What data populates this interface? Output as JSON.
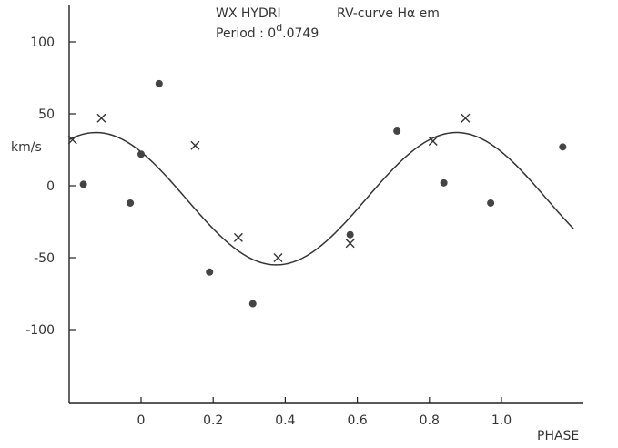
{
  "chart_data": {
    "type": "scatter",
    "title_object": "WX HYDRI",
    "title_curve": "RV-curve Hα em",
    "period_prefix": "Period : 0",
    "period_sup": "d",
    "period_suffix": ".0749",
    "ylabel": "km/s",
    "xlabel": "PHASE",
    "xlim": [
      -0.2,
      1.22
    ],
    "ylim": [
      -150,
      125
    ],
    "x_ticks": [
      0,
      0.2,
      0.4,
      0.6,
      0.8,
      1.0
    ],
    "x_tick_labels": [
      "0",
      "0.2",
      "0.4",
      "0.6",
      "0.8",
      "1.0"
    ],
    "y_ticks": [
      100,
      50,
      0,
      -50,
      -100
    ],
    "y_tick_labels": [
      "100",
      "50",
      "0",
      "-50",
      "-100"
    ],
    "grid": false,
    "series": [
      {
        "marker": "dot",
        "points": [
          [
            -0.16,
            1
          ],
          [
            -0.03,
            -12
          ],
          [
            0.0,
            22
          ],
          [
            0.05,
            71
          ],
          [
            0.19,
            -60
          ],
          [
            0.31,
            -82
          ],
          [
            0.58,
            -34
          ],
          [
            0.71,
            38
          ],
          [
            0.84,
            2
          ],
          [
            0.97,
            -12
          ],
          [
            1.17,
            27
          ]
        ]
      },
      {
        "marker": "cross",
        "points": [
          [
            -0.19,
            32
          ],
          [
            -0.11,
            47
          ],
          [
            0.15,
            28
          ],
          [
            0.27,
            -36
          ],
          [
            0.38,
            -50
          ],
          [
            0.58,
            -40
          ],
          [
            0.81,
            31
          ],
          [
            0.9,
            47
          ]
        ]
      }
    ],
    "fit_curve": {
      "type": "sinusoid",
      "gamma": -9,
      "amplitude": 46,
      "max_phase": -0.125,
      "period": 1.0,
      "x_range": [
        -0.2,
        1.2
      ]
    }
  }
}
